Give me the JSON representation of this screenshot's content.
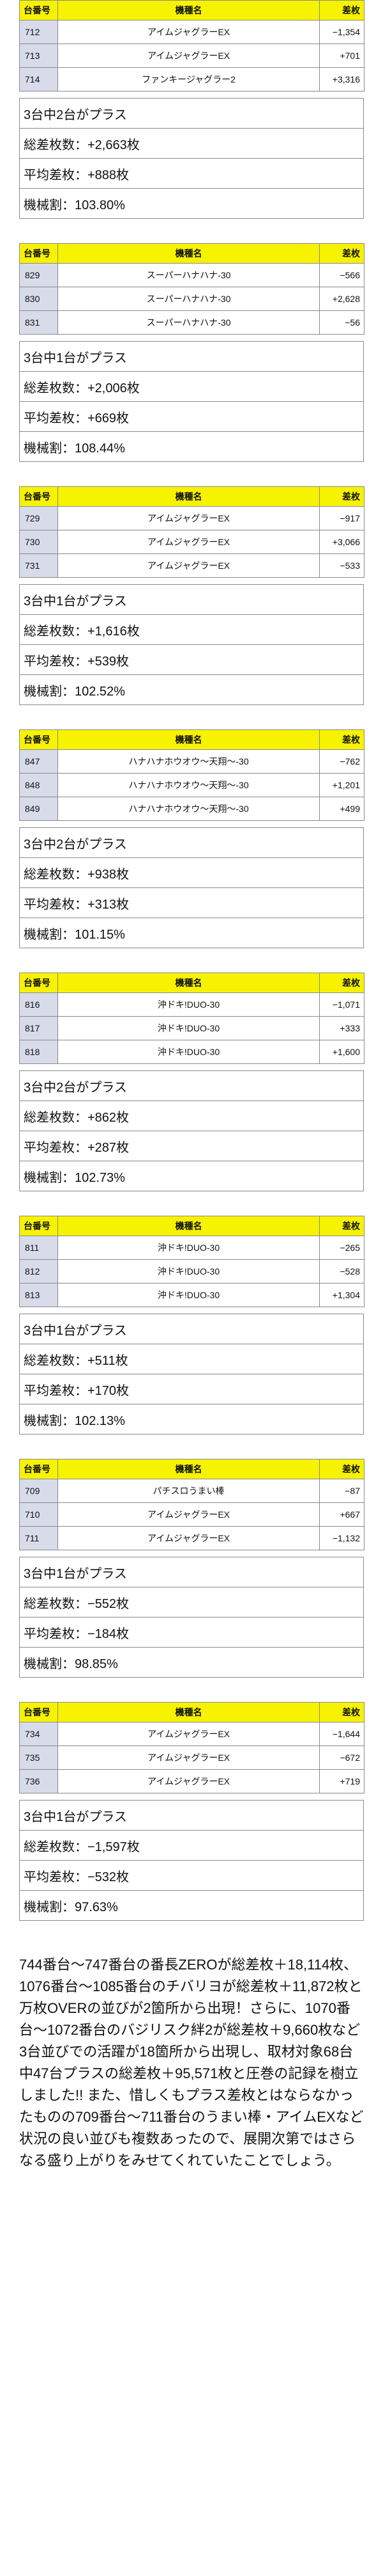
{
  "table_headers": {
    "number": "台番号",
    "machine": "機種名",
    "diff": "差枚"
  },
  "groups": [
    {
      "rows": [
        {
          "number": "712",
          "machine": "アイムジャグラーEX",
          "diff": "−1,354"
        },
        {
          "number": "713",
          "machine": "アイムジャグラーEX",
          "diff": "+701"
        },
        {
          "number": "714",
          "machine": "ファンキージャグラー2",
          "diff": "+3,316"
        }
      ],
      "plus_count": "3台中2台がプラス",
      "total": "総差枚数：+2,663枚",
      "avg": "平均差枚：+888枚",
      "rate": "機械割：103.80%"
    },
    {
      "rows": [
        {
          "number": "829",
          "machine": "スーパーハナハナ-30",
          "diff": "−566"
        },
        {
          "number": "830",
          "machine": "スーパーハナハナ-30",
          "diff": "+2,628"
        },
        {
          "number": "831",
          "machine": "スーパーハナハナ-30",
          "diff": "−56"
        }
      ],
      "plus_count": "3台中1台がプラス",
      "total": "総差枚数：+2,006枚",
      "avg": "平均差枚：+669枚",
      "rate": "機械割：108.44%"
    },
    {
      "rows": [
        {
          "number": "729",
          "machine": "アイムジャグラーEX",
          "diff": "−917"
        },
        {
          "number": "730",
          "machine": "アイムジャグラーEX",
          "diff": "+3,066"
        },
        {
          "number": "731",
          "machine": "アイムジャグラーEX",
          "diff": "−533"
        }
      ],
      "plus_count": "3台中1台がプラス",
      "total": "総差枚数：+1,616枚",
      "avg": "平均差枚：+539枚",
      "rate": "機械割：102.52%"
    },
    {
      "rows": [
        {
          "number": "847",
          "machine": "ハナハナホウオウ〜天翔〜-30",
          "diff": "−762"
        },
        {
          "number": "848",
          "machine": "ハナハナホウオウ〜天翔〜-30",
          "diff": "+1,201"
        },
        {
          "number": "849",
          "machine": "ハナハナホウオウ〜天翔〜-30",
          "diff": "+499"
        }
      ],
      "plus_count": "3台中2台がプラス",
      "total": "総差枚数：+938枚",
      "avg": "平均差枚：+313枚",
      "rate": "機械割：101.15%"
    },
    {
      "rows": [
        {
          "number": "816",
          "machine": "沖ドキ!DUO-30",
          "diff": "−1,071"
        },
        {
          "number": "817",
          "machine": "沖ドキ!DUO-30",
          "diff": "+333"
        },
        {
          "number": "818",
          "machine": "沖ドキ!DUO-30",
          "diff": "+1,600"
        }
      ],
      "plus_count": "3台中2台がプラス",
      "total": "総差枚数：+862枚",
      "avg": "平均差枚：+287枚",
      "rate": "機械割：102.73%"
    },
    {
      "rows": [
        {
          "number": "811",
          "machine": "沖ドキ!DUO-30",
          "diff": "−265"
        },
        {
          "number": "812",
          "machine": "沖ドキ!DUO-30",
          "diff": "−528"
        },
        {
          "number": "813",
          "machine": "沖ドキ!DUO-30",
          "diff": "+1,304"
        }
      ],
      "plus_count": "3台中1台がプラス",
      "total": "総差枚数：+511枚",
      "avg": "平均差枚：+170枚",
      "rate": "機械割：102.13%"
    },
    {
      "rows": [
        {
          "number": "709",
          "machine": "パチスロうまい棒",
          "diff": "−87"
        },
        {
          "number": "710",
          "machine": "アイムジャグラーEX",
          "diff": "+667"
        },
        {
          "number": "711",
          "machine": "アイムジャグラーEX",
          "diff": "−1,132"
        }
      ],
      "plus_count": "3台中1台がプラス",
      "total": "総差枚数：−552枚",
      "avg": "平均差枚：−184枚",
      "rate": "機械割：98.85%"
    },
    {
      "rows": [
        {
          "number": "734",
          "machine": "アイムジャグラーEX",
          "diff": "−1,644"
        },
        {
          "number": "735",
          "machine": "アイムジャグラーEX",
          "diff": "−672"
        },
        {
          "number": "736",
          "machine": "アイムジャグラーEX",
          "diff": "+719"
        }
      ],
      "plus_count": "3台中1台がプラス",
      "total": "総差枚数：−1,597枚",
      "avg": "平均差枚：−532枚",
      "rate": "機械割：97.63%"
    }
  ],
  "summary": "744番台〜747番台の番長ZEROが総差枚＋18,114枚、1076番台〜1085番台のチバリヨが総差枚＋11,872枚と万枚OVERの並びが2箇所から出現！さらに、1070番台〜1072番台のバジリスク絆2が総差枚＋9,660枚など3台並びでの活躍が18箇所から出現し、取材対象68台中47台プラスの総差枚＋95,571枚と圧巻の記録を樹立しました!! また、惜しくもプラス差枚とはならなかったものの709番台〜711番台のうまい棒・アイムEXなど状況の良い並びも複数あったので、展開次第ではさらなる盛り上がりをみせてくれていたことでしょう。"
}
